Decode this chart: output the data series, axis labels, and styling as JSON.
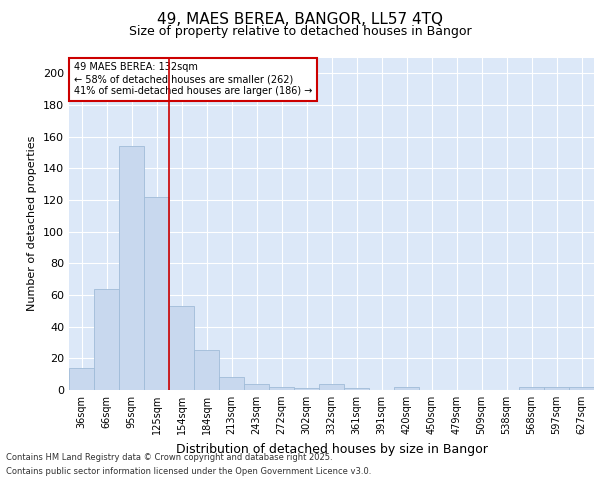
{
  "title_line1": "49, MAES BEREA, BANGOR, LL57 4TQ",
  "title_line2": "Size of property relative to detached houses in Bangor",
  "xlabel": "Distribution of detached houses by size in Bangor",
  "ylabel": "Number of detached properties",
  "categories": [
    "36sqm",
    "66sqm",
    "95sqm",
    "125sqm",
    "154sqm",
    "184sqm",
    "213sqm",
    "243sqm",
    "272sqm",
    "302sqm",
    "332sqm",
    "361sqm",
    "391sqm",
    "420sqm",
    "450sqm",
    "479sqm",
    "509sqm",
    "538sqm",
    "568sqm",
    "597sqm",
    "627sqm"
  ],
  "values": [
    14,
    64,
    154,
    122,
    53,
    25,
    8,
    4,
    2,
    1,
    4,
    1,
    0,
    2,
    0,
    0,
    0,
    0,
    2,
    2,
    2
  ],
  "bar_color": "#c8d8ee",
  "bar_edge_color": "#a0bcd8",
  "vline_x": 3.5,
  "vline_color": "#cc0000",
  "annotation_line1": "49 MAES BEREA: 132sqm",
  "annotation_line2": "← 58% of detached houses are smaller (262)",
  "annotation_line3": "41% of semi-detached houses are larger (186) →",
  "annotation_box_color": "white",
  "annotation_box_edge_color": "#cc0000",
  "ylim": [
    0,
    210
  ],
  "yticks": [
    0,
    20,
    40,
    60,
    80,
    100,
    120,
    140,
    160,
    180,
    200
  ],
  "footer_line1": "Contains HM Land Registry data © Crown copyright and database right 2025.",
  "footer_line2": "Contains public sector information licensed under the Open Government Licence v3.0.",
  "bg_color": "#dce8f8",
  "grid_color": "white",
  "title1_fontsize": 11,
  "title2_fontsize": 9,
  "ylabel_fontsize": 8,
  "xlabel_fontsize": 9,
  "tick_fontsize": 7,
  "annot_fontsize": 7,
  "footer_fontsize": 6
}
